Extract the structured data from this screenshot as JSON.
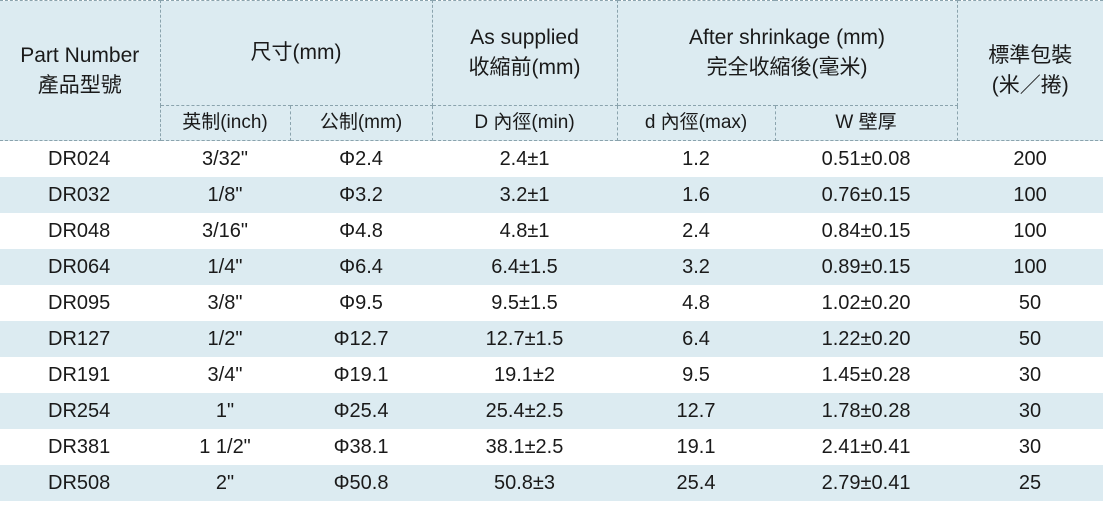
{
  "header": {
    "part_number": [
      "Part Number",
      "產品型號"
    ],
    "size": "尺寸(mm)",
    "as_supplied": [
      "As supplied",
      "收縮前(mm)"
    ],
    "after_shrinkage": [
      "After shrinkage (mm)",
      "完全收縮後(毫米)"
    ],
    "packing": [
      "標準包裝",
      "(米／捲)"
    ],
    "sub": {
      "inch": "英制(inch)",
      "metric": "公制(mm)",
      "inner_dia_min": "D  內徑(min)",
      "inner_dia_max": "d  內徑(max)",
      "wall": "W  壁厚"
    }
  },
  "rows": [
    [
      "DR024",
      "3/32\"",
      "Φ2.4",
      "2.4±1",
      "1.2",
      "0.51±0.08",
      "200"
    ],
    [
      "DR032",
      "1/8\"",
      "Φ3.2",
      "3.2±1",
      "1.6",
      "0.76±0.15",
      "100"
    ],
    [
      "DR048",
      "3/16\"",
      "Φ4.8",
      "4.8±1",
      "2.4",
      "0.84±0.15",
      "100"
    ],
    [
      "DR064",
      "1/4\"",
      "Φ6.4",
      "6.4±1.5",
      "3.2",
      "0.89±0.15",
      "100"
    ],
    [
      "DR095",
      "3/8\"",
      "Φ9.5",
      "9.5±1.5",
      "4.8",
      "1.02±0.20",
      "50"
    ],
    [
      "DR127",
      "1/2\"",
      "Φ12.7",
      "12.7±1.5",
      "6.4",
      "1.22±0.20",
      "50"
    ],
    [
      "DR191",
      "3/4\"",
      "Φ19.1",
      "19.1±2",
      "9.5",
      "1.45±0.28",
      "30"
    ],
    [
      "DR254",
      "1\"",
      "Φ25.4",
      "25.4±2.5",
      "12.7",
      "1.78±0.28",
      "30"
    ],
    [
      "DR381",
      "1 1/2\"",
      "Φ38.1",
      "38.1±2.5",
      "19.1",
      "2.41±0.41",
      "30"
    ],
    [
      "DR508",
      "2\"",
      "Φ50.8",
      "50.8±3",
      "25.4",
      "2.79±0.41",
      "25"
    ]
  ]
}
